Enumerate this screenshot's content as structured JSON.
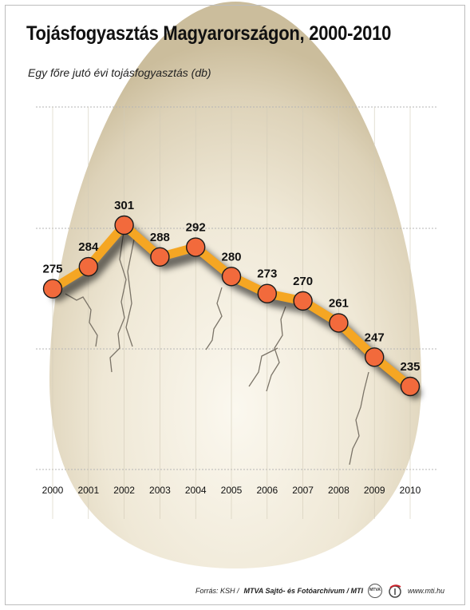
{
  "title": "Tojásfogyasztás Magyarországon, 2000-2010",
  "subtitle": "Egy főre jutó évi tojásfogyasztás (db)",
  "footer": {
    "source_prefix": "Forrás: KSH /",
    "source_bold": "MTVA Sajtó- és Fotóarchívum / MTI",
    "website": "www.mti.hu",
    "logo_text": "MTVA"
  },
  "colors": {
    "line": "#f5a623",
    "marker": "#f26a3c",
    "marker_stroke": "#1a1a1a",
    "egg": "#e9e2cf",
    "grid": "#b5b5b5"
  },
  "chart_data": {
    "type": "line",
    "title": "Tojásfogyasztás Magyarországon, 2000-2010",
    "subtitle": "Egy főre jutó évi tojásfogyasztás (db)",
    "categories": [
      "2000",
      "2001",
      "2002",
      "2003",
      "2004",
      "2005",
      "2006",
      "2007",
      "2008",
      "2009",
      "2010"
    ],
    "values": [
      275,
      284,
      301,
      288,
      292,
      280,
      273,
      270,
      261,
      247,
      235
    ],
    "data_labels": [
      "275",
      "284",
      "301",
      "288",
      "292",
      "280",
      "273",
      "270",
      "261",
      "247",
      "235"
    ],
    "grid": true,
    "legend": "none",
    "background": "egg"
  }
}
